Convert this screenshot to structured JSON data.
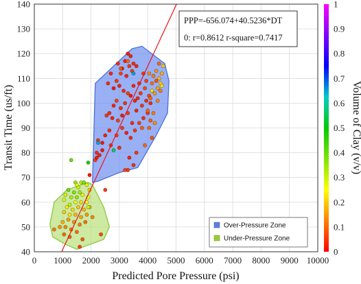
{
  "chart_data": {
    "type": "scatter",
    "xlabel": "Predicted Pore Pressure (psi)",
    "ylabel": "Transit Time (us/ft)",
    "colorbar_label": "Volume of Clay (v/v)",
    "xlim": [
      0,
      10000
    ],
    "ylim": [
      40,
      140
    ],
    "x_ticks": [
      "0",
      "1000",
      "2000",
      "3000",
      "4000",
      "5000",
      "6000",
      "7000",
      "8000",
      "9000",
      "10000"
    ],
    "y_ticks": [
      "40",
      "50",
      "60",
      "70",
      "80",
      "90",
      "100",
      "110",
      "120",
      "130",
      "140"
    ],
    "colorbar_ticks": [
      "0",
      "0.1",
      "0.2",
      "0.3",
      "0.4",
      "0.5",
      "0.6",
      "0.7",
      "0.8",
      "0.9",
      "1"
    ],
    "grid": true,
    "equation": "PPP=-656.074+40.5236*DT",
    "statistics": "0: r=0.8612 r-square=0.7417",
    "regression": {
      "intercept": -656.074,
      "slope": 40.5236
    },
    "legend": {
      "placement": "bottom-right",
      "items": [
        {
          "label": "Over-Pressure Zone",
          "color": "#5b7fe0"
        },
        {
          "label": "Under-Pressure Zone",
          "color": "#9acd32"
        }
      ]
    },
    "zones": [
      {
        "name": "Over-Pressure Zone",
        "fill": "#6f8ff0",
        "stroke": "#4a6fd8",
        "polygon": [
          [
            2050,
            68
          ],
          [
            2150,
            108
          ],
          [
            3450,
            122
          ],
          [
            3800,
            123
          ],
          [
            4600,
            116
          ],
          [
            4750,
            109
          ],
          [
            4700,
            96
          ],
          [
            4300,
            87
          ],
          [
            3650,
            74
          ],
          [
            3000,
            72
          ],
          [
            2250,
            68.5
          ]
        ]
      },
      {
        "name": "Under-Pressure Zone",
        "fill": "#b8e07a",
        "stroke": "#8cc63f",
        "polygon": [
          [
            550,
            51
          ],
          [
            700,
            60
          ],
          [
            1150,
            65
          ],
          [
            1900,
            68
          ],
          [
            2050,
            67
          ],
          [
            2450,
            58
          ],
          [
            2650,
            50
          ],
          [
            2450,
            45
          ],
          [
            1500,
            41
          ],
          [
            1100,
            43
          ],
          [
            650,
            46
          ]
        ]
      }
    ],
    "series": [
      {
        "points": [
          [
            3300,
            120,
            0.02
          ],
          [
            3400,
            119,
            0.03
          ],
          [
            3200,
            117,
            0.03
          ],
          [
            3500,
            116,
            0.04
          ],
          [
            3350,
            115,
            0.05
          ],
          [
            3100,
            114,
            0.02
          ],
          [
            2950,
            116,
            0.04
          ],
          [
            3600,
            115,
            0.03
          ],
          [
            3050,
            112,
            0.06
          ],
          [
            3250,
            111,
            0.03
          ],
          [
            3450,
            113,
            0.05
          ],
          [
            2700,
            112,
            0.03
          ],
          [
            2600,
            108,
            0.04
          ],
          [
            2800,
            106,
            0.02
          ],
          [
            2900,
            109,
            0.05
          ],
          [
            3000,
            107,
            0.03
          ],
          [
            3150,
            105,
            0.04
          ],
          [
            3300,
            104,
            0.06
          ],
          [
            3500,
            107,
            0.03
          ],
          [
            3700,
            108,
            0.04
          ],
          [
            3850,
            112,
            0.05
          ],
          [
            3950,
            109,
            0.06
          ],
          [
            3750,
            104,
            0.05
          ],
          [
            3650,
            102,
            0.04
          ],
          [
            3550,
            101,
            0.03
          ],
          [
            3400,
            103,
            0.02
          ],
          [
            3200,
            100,
            0.05
          ],
          [
            3050,
            98,
            0.04
          ],
          [
            2900,
            101,
            0.06
          ],
          [
            2800,
            99,
            0.03
          ],
          [
            2650,
            96,
            0.04
          ],
          [
            2550,
            95,
            0.05
          ],
          [
            2750,
            94,
            0.03
          ],
          [
            2950,
            93,
            0.06
          ],
          [
            3100,
            95,
            0.02
          ],
          [
            3300,
            96,
            0.05
          ],
          [
            3450,
            92,
            0.04
          ],
          [
            3600,
            97,
            0.03
          ],
          [
            3800,
            99,
            0.05
          ],
          [
            3950,
            101,
            0.04
          ],
          [
            4050,
            103,
            0.06
          ],
          [
            4100,
            100,
            0.04
          ],
          [
            4000,
            96,
            0.05
          ],
          [
            3850,
            94,
            0.04
          ],
          [
            3700,
            92,
            0.06
          ],
          [
            3550,
            89,
            0.05
          ],
          [
            3400,
            86,
            0.04
          ],
          [
            3250,
            88,
            0.03
          ],
          [
            3100,
            90,
            0.05
          ],
          [
            2900,
            87,
            0.06
          ],
          [
            2650,
            89,
            0.04
          ],
          [
            2500,
            87,
            0.03
          ],
          [
            2400,
            84,
            0.02
          ],
          [
            2250,
            85,
            0.05
          ],
          [
            2200,
            80,
            0.04
          ],
          [
            2300,
            79,
            0.03
          ],
          [
            2150,
            77,
            0.06
          ],
          [
            2400,
            81,
            0.02
          ],
          [
            2700,
            83,
            0.05
          ],
          [
            3000,
            82,
            0.04
          ],
          [
            3350,
            78,
            0.03
          ],
          [
            3500,
            75,
            0.04
          ],
          [
            3300,
            73,
            0.05
          ],
          [
            3200,
            73,
            0.06
          ],
          [
            3600,
            80,
            0.05
          ],
          [
            4200,
            111,
            0.12
          ],
          [
            4300,
            113,
            0.14
          ],
          [
            4400,
            110,
            0.18
          ],
          [
            4450,
            108,
            0.2
          ],
          [
            4350,
            106,
            0.16
          ],
          [
            4500,
            107,
            0.22
          ],
          [
            4250,
            104,
            0.15
          ],
          [
            4150,
            108,
            0.11
          ],
          [
            4050,
            112,
            0.13
          ],
          [
            4350,
            101,
            0.13
          ],
          [
            4200,
            96,
            0.12
          ],
          [
            4100,
            93,
            0.09
          ],
          [
            4250,
            92,
            0.14
          ],
          [
            4050,
            90,
            0.1
          ],
          [
            4150,
            86,
            0.08
          ],
          [
            3900,
            83,
            0.1
          ],
          [
            4400,
            116,
            0.1
          ],
          [
            4500,
            112,
            0.17
          ],
          [
            4550,
            115,
            0.2
          ],
          [
            4300,
            109,
            0.08
          ],
          [
            2200,
            78,
            0.02
          ],
          [
            2250,
            84,
            0.65
          ],
          [
            2800,
            81,
            0.55
          ],
          [
            3300,
            117,
            0.1
          ],
          [
            3500,
            112,
            0.65
          ],
          [
            3050,
            114,
            0.08
          ],
          [
            4450,
            105,
            0.12
          ],
          [
            4100,
            102,
            0.1
          ],
          [
            3900,
            106,
            0.07
          ],
          [
            4000,
            97,
            0.1
          ],
          [
            3800,
            90,
            0.09
          ],
          [
            4150,
            105,
            0.22
          ],
          [
            1900,
            76,
            0.48
          ],
          [
            1300,
            77,
            0.4
          ],
          [
            1950,
            71,
            0.02
          ],
          [
            2500,
            65,
            0.05
          ]
        ]
      },
      {
        "points": [
          [
            1450,
            68,
            0.35
          ],
          [
            1650,
            68,
            0.32
          ],
          [
            1750,
            68,
            0.38
          ],
          [
            1550,
            66,
            0.3
          ],
          [
            1850,
            67,
            0.28
          ],
          [
            1200,
            65,
            0.4
          ],
          [
            1400,
            64,
            0.37
          ],
          [
            1600,
            64,
            0.34
          ],
          [
            1100,
            63,
            0.29
          ],
          [
            1300,
            62,
            0.33
          ],
          [
            1500,
            62,
            0.36
          ],
          [
            1700,
            63,
            0.27
          ],
          [
            1900,
            62,
            0.25
          ],
          [
            1050,
            61,
            0.28
          ],
          [
            1250,
            59,
            0.31
          ],
          [
            1450,
            60,
            0.26
          ],
          [
            1650,
            60,
            0.22
          ],
          [
            1850,
            60,
            0.24
          ],
          [
            1950,
            65,
            0.2
          ],
          [
            1150,
            58,
            0.23
          ],
          [
            1350,
            57,
            0.21
          ],
          [
            1550,
            58,
            0.19
          ],
          [
            1750,
            57,
            0.18
          ],
          [
            1950,
            58,
            0.17
          ],
          [
            1050,
            56,
            0.2
          ],
          [
            1250,
            55,
            0.22
          ],
          [
            1450,
            55,
            0.18
          ],
          [
            1650,
            54,
            0.16
          ],
          [
            1850,
            55,
            0.15
          ],
          [
            2050,
            54,
            0.13
          ],
          [
            1000,
            52,
            0.17
          ],
          [
            1200,
            53,
            0.15
          ],
          [
            1400,
            52,
            0.14
          ],
          [
            1600,
            51,
            0.12
          ],
          [
            1800,
            52,
            0.11
          ],
          [
            900,
            50,
            0.14
          ],
          [
            1100,
            50,
            0.13
          ],
          [
            1300,
            49,
            0.11
          ],
          [
            1500,
            48,
            0.1
          ],
          [
            700,
            49,
            0.12
          ],
          [
            1050,
            47,
            0.1
          ],
          [
            1250,
            46,
            0.09
          ],
          [
            1700,
            45,
            0.08
          ],
          [
            2350,
            47,
            0.07
          ],
          [
            1600,
            42,
            0.06
          ],
          [
            1900,
            58,
            0.3
          ],
          [
            1500,
            67,
            0.28
          ]
        ]
      }
    ]
  }
}
